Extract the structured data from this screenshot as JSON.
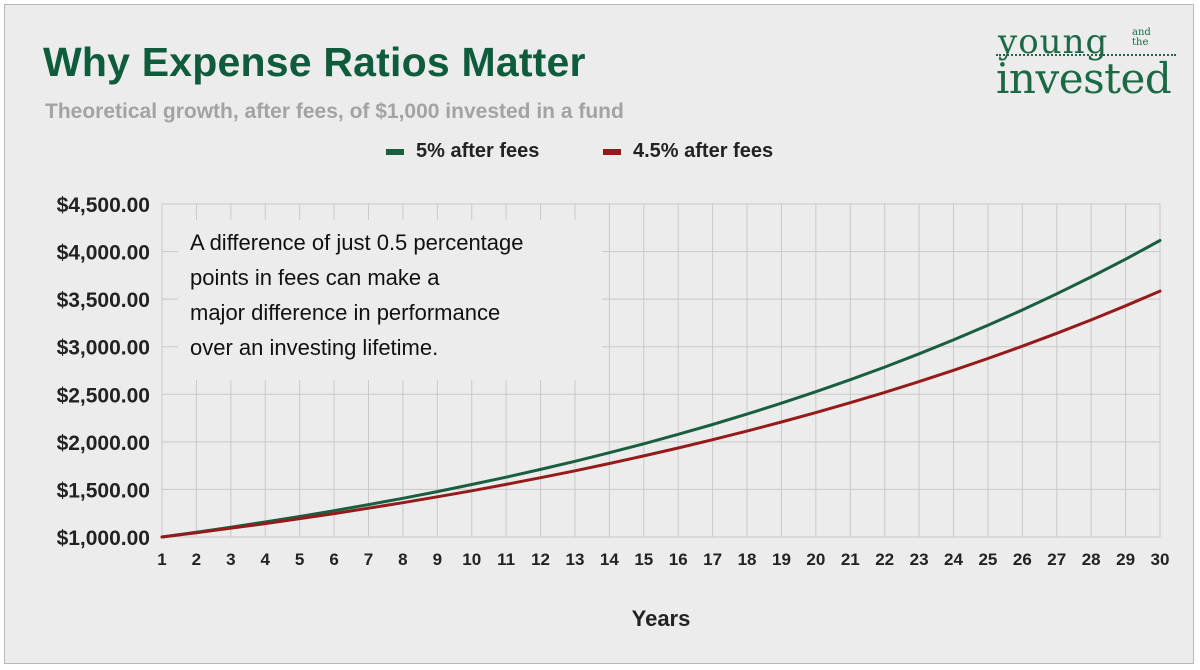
{
  "header": {
    "title": "Why Expense Ratios Matter",
    "subtitle": "Theoretical growth, after fees, of $1,000 invested in a fund"
  },
  "logo": {
    "young": "young",
    "and_the": "and the",
    "invested": "invested",
    "color": "#1b6a45"
  },
  "annotation": {
    "lines": [
      "A difference of just 0.5 percentage",
      "points in fees can make a",
      "major difference in performance",
      "over an investing lifetime."
    ]
  },
  "chart_data": {
    "type": "line",
    "title": "Why Expense Ratios Matter",
    "subtitle": "Theoretical growth, after fees, of $1,000 invested in a fund",
    "xlabel": "Years",
    "ylabel": "",
    "x": [
      1,
      2,
      3,
      4,
      5,
      6,
      7,
      8,
      9,
      10,
      11,
      12,
      13,
      14,
      15,
      16,
      17,
      18,
      19,
      20,
      21,
      22,
      23,
      24,
      25,
      26,
      27,
      28,
      29,
      30
    ],
    "ylim": [
      1000,
      4500
    ],
    "yticks": [
      1000,
      1500,
      2000,
      2500,
      3000,
      3500,
      4000,
      4500
    ],
    "ytick_labels": [
      "$1,000.00",
      "$1,500.00",
      "$2,000.00",
      "$2,500.00",
      "$3,000.00",
      "$3,500.00",
      "$4,000.00",
      "$4,500.00"
    ],
    "grid": true,
    "legend_position": "top-center",
    "series": [
      {
        "name": "5% after fees",
        "color": "#1a5e40",
        "values": [
          1000,
          1050,
          1102.5,
          1157.63,
          1215.51,
          1276.28,
          1340.1,
          1407.1,
          1477.46,
          1551.33,
          1628.89,
          1710.34,
          1795.86,
          1885.65,
          1979.93,
          2078.93,
          2182.87,
          2292.02,
          2406.62,
          2526.95,
          2653.3,
          2785.96,
          2925.26,
          3071.52,
          3225.1,
          3386.35,
          3555.67,
          3733.46,
          3920.13,
          4116.14
        ]
      },
      {
        "name": "4.5% after fees",
        "color": "#951b1b",
        "values": [
          1000,
          1045,
          1092.03,
          1141.17,
          1192.52,
          1246.18,
          1302.26,
          1360.86,
          1422.1,
          1486.1,
          1552.97,
          1622.85,
          1695.88,
          1772.2,
          1851.94,
          1935.28,
          2022.37,
          2113.38,
          2208.48,
          2307.86,
          2411.71,
          2520.24,
          2633.65,
          2752.17,
          2876.01,
          3005.43,
          3140.68,
          3282.01,
          3429.7,
          3584.04
        ]
      }
    ]
  }
}
